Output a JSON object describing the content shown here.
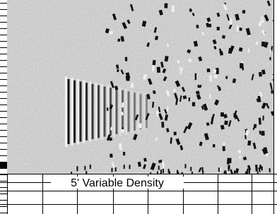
{
  "caption": "5' Variable Density"
}
